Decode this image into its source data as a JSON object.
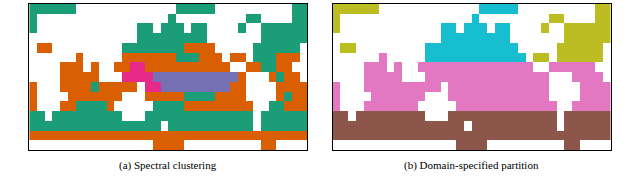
{
  "chart_data": [
    {
      "type": "heatmap",
      "title": "(a) Spectral clustering",
      "colors": [
        "#1b9e77",
        "#d95f02",
        "#7570b3",
        "#e7298a"
      ],
      "xlim": [
        0,
        360
      ],
      "ylim": [
        -70,
        80
      ],
      "tick_labels": false,
      "x": [
        5,
        15,
        25,
        35,
        45,
        55,
        65,
        75,
        85,
        95,
        105,
        115,
        125,
        135,
        145,
        155,
        165,
        175,
        185,
        195,
        205,
        215,
        225,
        235,
        245,
        255,
        265,
        275,
        285,
        295,
        305,
        315,
        325,
        335,
        345,
        355
      ],
      "y": [
        -65,
        -55,
        -45,
        -35,
        -25,
        -15,
        -5,
        5,
        15,
        25,
        35,
        45,
        55,
        65,
        75
      ],
      "z": [
        [
          null,
          null,
          null,
          null,
          null,
          null,
          null,
          null,
          null,
          null,
          null,
          null,
          null,
          null,
          null,
          null,
          1,
          1,
          1,
          1,
          null,
          null,
          null,
          null,
          null,
          null,
          null,
          null,
          null,
          null,
          1,
          1,
          null,
          null,
          null,
          null
        ],
        [
          1,
          1,
          1,
          1,
          1,
          1,
          1,
          1,
          1,
          1,
          1,
          1,
          1,
          1,
          1,
          1,
          1,
          1,
          1,
          1,
          1,
          1,
          1,
          1,
          1,
          1,
          1,
          1,
          1,
          1,
          1,
          1,
          1,
          1,
          1,
          1
        ],
        [
          0,
          0,
          0,
          0,
          0,
          0,
          0,
          0,
          0,
          0,
          0,
          0,
          0,
          0,
          0,
          0,
          0,
          null,
          0,
          0,
          0,
          0,
          0,
          0,
          0,
          0,
          0,
          0,
          0,
          null,
          0,
          0,
          0,
          0,
          0,
          0
        ],
        [
          0,
          0,
          null,
          0,
          0,
          0,
          0,
          0,
          0,
          0,
          0,
          0,
          null,
          null,
          null,
          0,
          0,
          0,
          0,
          0,
          0,
          0,
          0,
          0,
          0,
          0,
          0,
          0,
          0,
          null,
          0,
          0,
          0,
          0,
          0,
          0
        ],
        [
          1,
          null,
          null,
          null,
          1,
          1,
          0,
          0,
          0,
          0,
          1,
          null,
          null,
          null,
          null,
          null,
          0,
          0,
          0,
          0,
          1,
          1,
          1,
          1,
          1,
          1,
          1,
          1,
          1,
          null,
          null,
          0,
          0,
          1,
          1,
          1
        ],
        [
          1,
          null,
          null,
          null,
          null,
          1,
          1,
          1,
          1,
          1,
          1,
          1,
          null,
          null,
          null,
          1,
          1,
          1,
          1,
          1,
          0,
          0,
          0,
          0,
          1,
          1,
          1,
          1,
          null,
          null,
          null,
          null,
          1,
          0,
          1,
          1
        ],
        [
          1,
          null,
          null,
          null,
          1,
          1,
          1,
          1,
          0,
          1,
          1,
          1,
          1,
          1,
          null,
          3,
          3,
          2,
          2,
          2,
          2,
          2,
          2,
          2,
          2,
          2,
          1,
          1,
          null,
          null,
          null,
          null,
          1,
          1,
          1,
          1
        ],
        [
          null,
          null,
          null,
          null,
          1,
          1,
          1,
          1,
          1,
          null,
          null,
          null,
          3,
          3,
          3,
          3,
          2,
          2,
          2,
          2,
          2,
          2,
          2,
          2,
          2,
          2,
          2,
          1,
          null,
          null,
          null,
          1,
          0,
          1,
          1,
          null
        ],
        [
          null,
          null,
          null,
          null,
          1,
          1,
          1,
          null,
          1,
          null,
          null,
          1,
          1,
          3,
          3,
          1,
          1,
          1,
          1,
          1,
          1,
          1,
          1,
          1,
          1,
          1,
          null,
          null,
          1,
          1,
          0,
          0,
          1,
          1,
          null,
          null
        ],
        [
          null,
          null,
          null,
          null,
          null,
          null,
          1,
          null,
          null,
          null,
          null,
          null,
          1,
          1,
          1,
          1,
          1,
          1,
          1,
          0,
          0,
          0,
          1,
          1,
          1,
          null,
          1,
          1,
          null,
          0,
          0,
          0,
          1,
          1,
          1,
          null
        ],
        [
          null,
          1,
          1,
          null,
          null,
          null,
          null,
          null,
          null,
          null,
          null,
          null,
          0,
          0,
          0,
          0,
          0,
          0,
          0,
          0,
          1,
          1,
          1,
          1,
          null,
          null,
          null,
          null,
          null,
          0,
          0,
          0,
          0,
          0,
          0,
          null
        ],
        [
          null,
          null,
          null,
          null,
          null,
          null,
          null,
          null,
          null,
          null,
          null,
          null,
          null,
          null,
          0,
          0,
          0,
          0,
          0,
          0,
          0,
          0,
          0,
          null,
          null,
          null,
          null,
          null,
          null,
          null,
          0,
          0,
          0,
          0,
          0,
          0
        ],
        [
          0,
          null,
          null,
          null,
          null,
          null,
          null,
          null,
          null,
          null,
          null,
          null,
          null,
          null,
          0,
          0,
          null,
          0,
          0,
          0,
          null,
          0,
          0,
          null,
          null,
          null,
          null,
          0,
          null,
          null,
          0,
          0,
          0,
          0,
          0,
          0
        ],
        [
          0,
          null,
          null,
          null,
          null,
          null,
          null,
          null,
          null,
          null,
          null,
          null,
          null,
          null,
          null,
          null,
          null,
          null,
          0,
          null,
          null,
          null,
          null,
          null,
          null,
          null,
          null,
          null,
          0,
          0,
          null,
          null,
          null,
          null,
          0,
          0
        ],
        [
          0,
          0,
          0,
          0,
          0,
          0,
          null,
          null,
          null,
          null,
          null,
          null,
          null,
          null,
          null,
          null,
          null,
          null,
          null,
          0,
          0,
          0,
          0,
          0,
          null,
          null,
          null,
          null,
          null,
          null,
          null,
          null,
          null,
          null,
          0,
          0
        ]
      ]
    },
    {
      "type": "heatmap",
      "title": "(b) Domain-specified partition",
      "colors": [
        "#17becf",
        "#bcbd22",
        "#e377c2",
        "#8c564b"
      ],
      "xlim": [
        0,
        360
      ],
      "ylim": [
        -70,
        80
      ],
      "tick_labels": false,
      "x": [
        5,
        15,
        25,
        35,
        45,
        55,
        65,
        75,
        85,
        95,
        105,
        115,
        125,
        135,
        145,
        155,
        165,
        175,
        185,
        195,
        205,
        215,
        225,
        235,
        245,
        255,
        265,
        275,
        285,
        295,
        305,
        315,
        325,
        335,
        345,
        355
      ],
      "y": [
        -65,
        -55,
        -45,
        -35,
        -25,
        -15,
        -5,
        5,
        15,
        25,
        35,
        45,
        55,
        65,
        75
      ],
      "z": [
        [
          null,
          null,
          null,
          null,
          null,
          null,
          null,
          null,
          null,
          null,
          null,
          null,
          null,
          null,
          null,
          null,
          3,
          3,
          3,
          3,
          null,
          null,
          null,
          null,
          null,
          null,
          null,
          null,
          null,
          null,
          3,
          3,
          null,
          null,
          null,
          null
        ],
        [
          3,
          3,
          3,
          3,
          3,
          3,
          3,
          3,
          3,
          3,
          3,
          3,
          3,
          3,
          3,
          3,
          3,
          3,
          3,
          3,
          3,
          3,
          3,
          3,
          3,
          3,
          3,
          3,
          3,
          3,
          3,
          3,
          3,
          3,
          3,
          3
        ],
        [
          3,
          3,
          3,
          3,
          3,
          3,
          3,
          3,
          3,
          3,
          3,
          3,
          3,
          3,
          3,
          3,
          3,
          null,
          3,
          3,
          3,
          3,
          3,
          3,
          3,
          3,
          3,
          3,
          3,
          null,
          3,
          3,
          3,
          3,
          3,
          3
        ],
        [
          3,
          3,
          null,
          3,
          3,
          3,
          3,
          3,
          3,
          3,
          3,
          3,
          null,
          null,
          null,
          3,
          3,
          3,
          3,
          3,
          3,
          3,
          3,
          3,
          3,
          3,
          3,
          3,
          3,
          null,
          3,
          3,
          3,
          3,
          3,
          3
        ],
        [
          2,
          null,
          null,
          null,
          2,
          2,
          2,
          2,
          2,
          2,
          2,
          null,
          null,
          null,
          null,
          null,
          2,
          2,
          2,
          2,
          2,
          2,
          2,
          2,
          2,
          2,
          2,
          2,
          2,
          null,
          null,
          2,
          2,
          2,
          2,
          2
        ],
        [
          2,
          null,
          null,
          null,
          null,
          2,
          2,
          2,
          2,
          2,
          2,
          2,
          null,
          null,
          null,
          2,
          2,
          2,
          2,
          2,
          2,
          2,
          2,
          2,
          2,
          2,
          2,
          2,
          null,
          null,
          null,
          null,
          2,
          2,
          2,
          2
        ],
        [
          2,
          null,
          null,
          null,
          2,
          2,
          2,
          2,
          2,
          2,
          2,
          2,
          2,
          2,
          null,
          2,
          2,
          2,
          2,
          2,
          2,
          2,
          2,
          2,
          2,
          2,
          2,
          2,
          null,
          null,
          null,
          null,
          2,
          2,
          2,
          2
        ],
        [
          null,
          null,
          null,
          null,
          2,
          2,
          2,
          2,
          2,
          null,
          null,
          null,
          2,
          2,
          2,
          2,
          2,
          2,
          2,
          2,
          2,
          2,
          2,
          2,
          2,
          2,
          2,
          2,
          null,
          null,
          null,
          2,
          2,
          2,
          2,
          null
        ],
        [
          null,
          null,
          null,
          null,
          2,
          2,
          2,
          null,
          2,
          null,
          null,
          2,
          2,
          2,
          2,
          2,
          2,
          2,
          2,
          2,
          2,
          2,
          2,
          2,
          2,
          2,
          null,
          null,
          2,
          2,
          2,
          2,
          2,
          2,
          null,
          null
        ],
        [
          null,
          null,
          null,
          null,
          null,
          null,
          2,
          null,
          null,
          null,
          null,
          null,
          0,
          0,
          0,
          0,
          0,
          0,
          0,
          0,
          0,
          0,
          0,
          0,
          0,
          null,
          1,
          1,
          null,
          1,
          1,
          1,
          1,
          1,
          1,
          null
        ],
        [
          null,
          1,
          1,
          null,
          null,
          null,
          null,
          null,
          null,
          null,
          null,
          null,
          0,
          0,
          0,
          0,
          0,
          0,
          0,
          0,
          0,
          0,
          0,
          0,
          null,
          null,
          null,
          null,
          null,
          1,
          1,
          1,
          1,
          1,
          1,
          null
        ],
        [
          null,
          null,
          null,
          null,
          null,
          null,
          null,
          null,
          null,
          null,
          null,
          null,
          null,
          null,
          0,
          0,
          0,
          0,
          0,
          0,
          0,
          0,
          0,
          null,
          null,
          null,
          null,
          null,
          null,
          null,
          1,
          1,
          1,
          1,
          1,
          1
        ],
        [
          1,
          null,
          null,
          null,
          null,
          null,
          null,
          null,
          null,
          null,
          null,
          null,
          null,
          null,
          0,
          0,
          null,
          0,
          0,
          0,
          null,
          0,
          0,
          null,
          null,
          null,
          null,
          1,
          null,
          null,
          1,
          1,
          1,
          1,
          1,
          1
        ],
        [
          1,
          null,
          null,
          null,
          null,
          null,
          null,
          null,
          null,
          null,
          null,
          null,
          null,
          null,
          null,
          null,
          null,
          null,
          0,
          null,
          null,
          null,
          null,
          null,
          null,
          null,
          null,
          null,
          1,
          1,
          null,
          null,
          null,
          null,
          1,
          1
        ],
        [
          1,
          1,
          1,
          1,
          1,
          1,
          null,
          null,
          null,
          null,
          null,
          null,
          null,
          null,
          null,
          null,
          null,
          null,
          null,
          0,
          0,
          0,
          0,
          0,
          null,
          null,
          null,
          null,
          null,
          null,
          null,
          null,
          null,
          null,
          1,
          1
        ]
      ]
    }
  ]
}
